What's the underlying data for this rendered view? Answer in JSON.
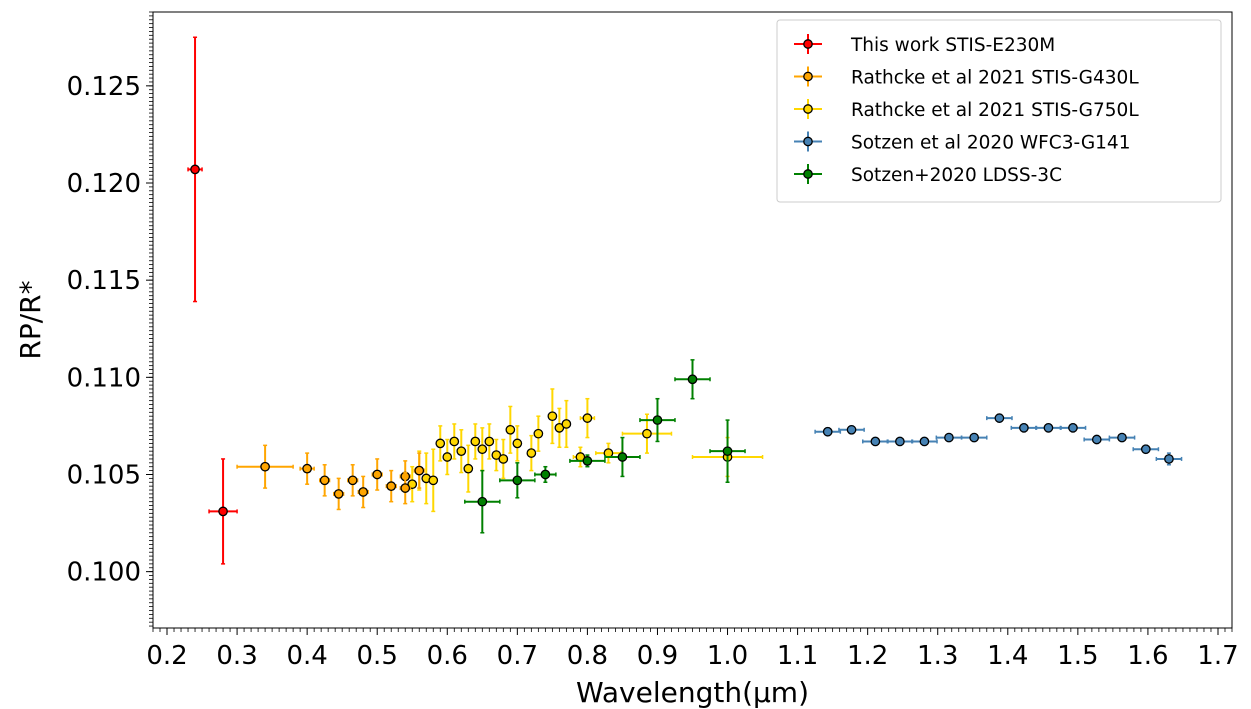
{
  "chart_data": {
    "type": "scatter",
    "xlabel": "Wavelength(μm)",
    "ylabel": "RP/R*",
    "xlim": [
      0.18,
      1.72
    ],
    "ylim": [
      0.0971,
      0.1288
    ],
    "x_ticks": [
      0.2,
      0.3,
      0.4,
      0.5,
      0.6,
      0.7,
      0.8,
      0.9,
      1.0,
      1.1,
      1.2,
      1.3,
      1.4,
      1.5,
      1.6,
      1.7
    ],
    "x_tick_labels": [
      "0.2",
      "0.3",
      "0.4",
      "0.5",
      "0.6",
      "0.7",
      "0.8",
      "0.9",
      "1.0",
      "1.1",
      "1.2",
      "1.3",
      "1.4",
      "1.5",
      "1.6",
      "1.7"
    ],
    "y_ticks": [
      0.1,
      0.105,
      0.11,
      0.115,
      0.12,
      0.125
    ],
    "y_tick_labels": [
      "0.100",
      "0.105",
      "0.110",
      "0.115",
      "0.120",
      "0.125"
    ],
    "grid": false,
    "legend_position": "top-right",
    "series": [
      {
        "name": "Rathcke et al 2021 STIS-G750L",
        "color": "#FFD700",
        "points": [
          {
            "x": 0.55,
            "y": 0.1045,
            "xerr": 0.005,
            "yerr": 0.0009
          },
          {
            "x": 0.56,
            "y": 0.1052,
            "xerr": 0.005,
            "yerr": 0.001
          },
          {
            "x": 0.57,
            "y": 0.1048,
            "xerr": 0.005,
            "yerr": 0.0013
          },
          {
            "x": 0.58,
            "y": 0.1047,
            "xerr": 0.005,
            "yerr": 0.0016
          },
          {
            "x": 0.59,
            "y": 0.1066,
            "xerr": 0.005,
            "yerr": 0.0009
          },
          {
            "x": 0.6,
            "y": 0.1059,
            "xerr": 0.005,
            "yerr": 0.0009
          },
          {
            "x": 0.61,
            "y": 0.1067,
            "xerr": 0.005,
            "yerr": 0.0009
          },
          {
            "x": 0.62,
            "y": 0.1062,
            "xerr": 0.005,
            "yerr": 0.0011
          },
          {
            "x": 0.63,
            "y": 0.1053,
            "xerr": 0.005,
            "yerr": 0.0012
          },
          {
            "x": 0.64,
            "y": 0.1067,
            "xerr": 0.005,
            "yerr": 0.0009
          },
          {
            "x": 0.65,
            "y": 0.1063,
            "xerr": 0.005,
            "yerr": 0.0011
          },
          {
            "x": 0.66,
            "y": 0.1067,
            "xerr": 0.005,
            "yerr": 0.0009
          },
          {
            "x": 0.67,
            "y": 0.106,
            "xerr": 0.005,
            "yerr": 0.0008
          },
          {
            "x": 0.68,
            "y": 0.1058,
            "xerr": 0.005,
            "yerr": 0.001
          },
          {
            "x": 0.69,
            "y": 0.1073,
            "xerr": 0.005,
            "yerr": 0.0012
          },
          {
            "x": 0.7,
            "y": 0.1066,
            "xerr": 0.005,
            "yerr": 0.0009
          },
          {
            "x": 0.72,
            "y": 0.1061,
            "xerr": 0.005,
            "yerr": 0.0009
          },
          {
            "x": 0.73,
            "y": 0.1071,
            "xerr": 0.005,
            "yerr": 0.0009
          },
          {
            "x": 0.75,
            "y": 0.108,
            "xerr": 0.005,
            "yerr": 0.0014
          },
          {
            "x": 0.76,
            "y": 0.1074,
            "xerr": 0.005,
            "yerr": 0.001
          },
          {
            "x": 0.77,
            "y": 0.1076,
            "xerr": 0.005,
            "yerr": 0.0012
          },
          {
            "x": 0.79,
            "y": 0.1059,
            "xerr": 0.01,
            "yerr": 0.0005
          },
          {
            "x": 0.8,
            "y": 0.1079,
            "xerr": 0.01,
            "yerr": 0.001
          },
          {
            "x": 0.83,
            "y": 0.1061,
            "xerr": 0.018,
            "yerr": 0.0005
          },
          {
            "x": 0.885,
            "y": 0.1071,
            "xerr": 0.035,
            "yerr": 0.001
          },
          {
            "x": 1.0,
            "y": 0.1059,
            "xerr": 0.05,
            "yerr": 0.001
          }
        ]
      },
      {
        "name": "Rathcke et al 2021 STIS-G430L",
        "color": "#FFA500",
        "points": [
          {
            "x": 0.34,
            "y": 0.1054,
            "xerr": 0.04,
            "yerr": 0.0011
          },
          {
            "x": 0.4,
            "y": 0.1053,
            "xerr": 0.01,
            "yerr": 0.0008
          },
          {
            "x": 0.425,
            "y": 0.1047,
            "xerr": 0.007,
            "yerr": 0.0008
          },
          {
            "x": 0.445,
            "y": 0.104,
            "xerr": 0.007,
            "yerr": 0.0008
          },
          {
            "x": 0.465,
            "y": 0.1047,
            "xerr": 0.007,
            "yerr": 0.0008
          },
          {
            "x": 0.48,
            "y": 0.1041,
            "xerr": 0.007,
            "yerr": 0.0008
          },
          {
            "x": 0.5,
            "y": 0.105,
            "xerr": 0.007,
            "yerr": 0.0008
          },
          {
            "x": 0.52,
            "y": 0.1044,
            "xerr": 0.007,
            "yerr": 0.0008
          },
          {
            "x": 0.54,
            "y": 0.1049,
            "xerr": 0.007,
            "yerr": 0.0008
          },
          {
            "x": 0.54,
            "y": 0.1043,
            "xerr": 0.007,
            "yerr": 0.0008
          },
          {
            "x": 0.56,
            "y": 0.1052,
            "xerr": 0.007,
            "yerr": 0.0009
          }
        ]
      },
      {
        "name": "Sotzen et al 2020 WFC3-G141",
        "color": "#4682B4",
        "points": [
          {
            "x": 1.143,
            "y": 0.1072,
            "xerr": 0.018,
            "yerr": 0.0002
          },
          {
            "x": 1.177,
            "y": 0.1073,
            "xerr": 0.018,
            "yerr": 0.0002
          },
          {
            "x": 1.211,
            "y": 0.1067,
            "xerr": 0.018,
            "yerr": 0.0002
          },
          {
            "x": 1.246,
            "y": 0.1067,
            "xerr": 0.018,
            "yerr": 0.0002
          },
          {
            "x": 1.281,
            "y": 0.1067,
            "xerr": 0.018,
            "yerr": 0.0002
          },
          {
            "x": 1.316,
            "y": 0.1069,
            "xerr": 0.018,
            "yerr": 0.0002
          },
          {
            "x": 1.352,
            "y": 0.1069,
            "xerr": 0.018,
            "yerr": 0.0002
          },
          {
            "x": 1.388,
            "y": 0.1079,
            "xerr": 0.018,
            "yerr": 0.0002
          },
          {
            "x": 1.423,
            "y": 0.1074,
            "xerr": 0.018,
            "yerr": 0.0002
          },
          {
            "x": 1.458,
            "y": 0.1074,
            "xerr": 0.018,
            "yerr": 0.0002
          },
          {
            "x": 1.493,
            "y": 0.1074,
            "xerr": 0.018,
            "yerr": 0.0002
          },
          {
            "x": 1.527,
            "y": 0.1068,
            "xerr": 0.018,
            "yerr": 0.0002
          },
          {
            "x": 1.563,
            "y": 0.1069,
            "xerr": 0.018,
            "yerr": 0.0002
          },
          {
            "x": 1.597,
            "y": 0.1063,
            "xerr": 0.018,
            "yerr": 0.0002
          },
          {
            "x": 1.63,
            "y": 0.1058,
            "xerr": 0.018,
            "yerr": 0.0003
          }
        ]
      },
      {
        "name": "Sotzen+2020 LDSS-3C",
        "color": "#008000",
        "points": [
          {
            "x": 0.65,
            "y": 0.1036,
            "xerr": 0.025,
            "yerr": 0.0016
          },
          {
            "x": 0.7,
            "y": 0.1047,
            "xerr": 0.025,
            "yerr": 0.0009
          },
          {
            "x": 0.74,
            "y": 0.105,
            "xerr": 0.015,
            "yerr": 0.0004
          },
          {
            "x": 0.8,
            "y": 0.1057,
            "xerr": 0.025,
            "yerr": 0.0003
          },
          {
            "x": 0.85,
            "y": 0.1059,
            "xerr": 0.025,
            "yerr": 0.001
          },
          {
            "x": 0.9,
            "y": 0.1078,
            "xerr": 0.025,
            "yerr": 0.0011
          },
          {
            "x": 0.95,
            "y": 0.1099,
            "xerr": 0.025,
            "yerr": 0.001
          },
          {
            "x": 1.0,
            "y": 0.1062,
            "xerr": 0.025,
            "yerr": 0.0016
          }
        ]
      },
      {
        "name": "This work STIS-E230M",
        "color": "#FF0000",
        "points": [
          {
            "x": 0.24,
            "y": 0.1207,
            "xerr": 0.01,
            "yerr": 0.0068
          },
          {
            "x": 0.28,
            "y": 0.1031,
            "xerr": 0.02,
            "yerr": 0.0027
          }
        ]
      }
    ],
    "legend_order": [
      "This work STIS-E230M",
      "Rathcke et al 2021 STIS-G430L",
      "Rathcke et al 2021 STIS-G750L",
      "Sotzen et al 2020 WFC3-G141",
      "Sotzen+2020 LDSS-3C"
    ]
  }
}
